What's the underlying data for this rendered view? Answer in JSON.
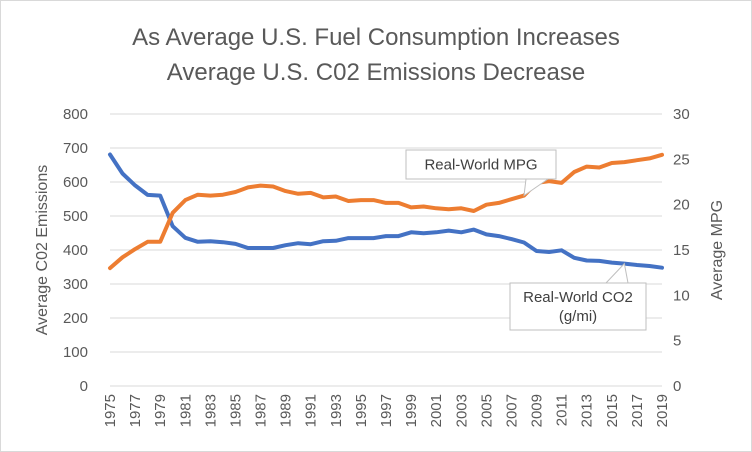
{
  "chart_data": {
    "type": "line",
    "title": [
      "As Average U.S. Fuel Consumption Increases",
      "Average U.S. C02 Emissions Decrease"
    ],
    "ylabel_left": "Average C02 Emissions",
    "ylabel_right": "Average MPG",
    "ylim_left": [
      0,
      800
    ],
    "ylim_right": [
      0,
      30
    ],
    "yticks_left": [
      "0",
      "100",
      "200",
      "300",
      "400",
      "500",
      "600",
      "700",
      "800"
    ],
    "yticks_right": [
      "0",
      "5",
      "10",
      "15",
      "20",
      "25",
      "30"
    ],
    "x": [
      1975,
      1976,
      1977,
      1978,
      1979,
      1980,
      1981,
      1982,
      1983,
      1984,
      1985,
      1986,
      1987,
      1988,
      1989,
      1990,
      1991,
      1992,
      1993,
      1994,
      1995,
      1996,
      1997,
      1998,
      1999,
      2000,
      2001,
      2002,
      2003,
      2004,
      2005,
      2006,
      2007,
      2008,
      2009,
      2010,
      2011,
      2012,
      2013,
      2014,
      2015,
      2016,
      2017,
      2018,
      2019
    ],
    "xtick_labels": [
      "1975",
      "1977",
      "1979",
      "1981",
      "1983",
      "1985",
      "1987",
      "1989",
      "1991",
      "1993",
      "1995",
      "1997",
      "1999",
      "2001",
      "2003",
      "2005",
      "2007",
      "2009",
      "2011",
      "2013",
      "2015",
      "2017",
      "2019"
    ],
    "grid": true,
    "legend": "none",
    "series": [
      {
        "name": "Real-World CO2 (g/mi)",
        "axis": "left",
        "color": "#4472c4",
        "values": [
          681,
          625,
          590,
          562,
          560,
          470,
          436,
          424,
          426,
          423,
          418,
          406,
          406,
          406,
          414,
          420,
          417,
          426,
          427,
          435,
          435,
          435,
          441,
          441,
          452,
          449,
          452,
          457,
          452,
          460,
          446,
          441,
          432,
          422,
          397,
          394,
          399,
          377,
          369,
          368,
          363,
          360,
          356,
          353,
          348
        ]
      },
      {
        "name": "Real-World MPG",
        "axis": "right",
        "color": "#ed7d31",
        "values": [
          13.0,
          14.2,
          15.1,
          15.9,
          15.9,
          19.1,
          20.5,
          21.1,
          21.0,
          21.1,
          21.4,
          21.9,
          22.1,
          22.0,
          21.5,
          21.2,
          21.3,
          20.8,
          20.9,
          20.4,
          20.5,
          20.5,
          20.2,
          20.2,
          19.7,
          19.8,
          19.6,
          19.5,
          19.6,
          19.3,
          20.0,
          20.2,
          20.6,
          21.0,
          22.4,
          22.6,
          22.4,
          23.6,
          24.2,
          24.1,
          24.6,
          24.7,
          24.9,
          25.1,
          25.5
        ]
      }
    ],
    "annotations": [
      {
        "text": "Real-World MPG",
        "series": "Real-World MPG",
        "points_to_x": 2008
      },
      {
        "text": "Real-World CO2\n(g/mi)",
        "series": "Real-World CO2 (g/mi)",
        "points_to_x": 2016
      }
    ]
  },
  "colors": {
    "grid": "#d9d9d9",
    "text": "#595959",
    "frame": "#d9d9d9"
  }
}
